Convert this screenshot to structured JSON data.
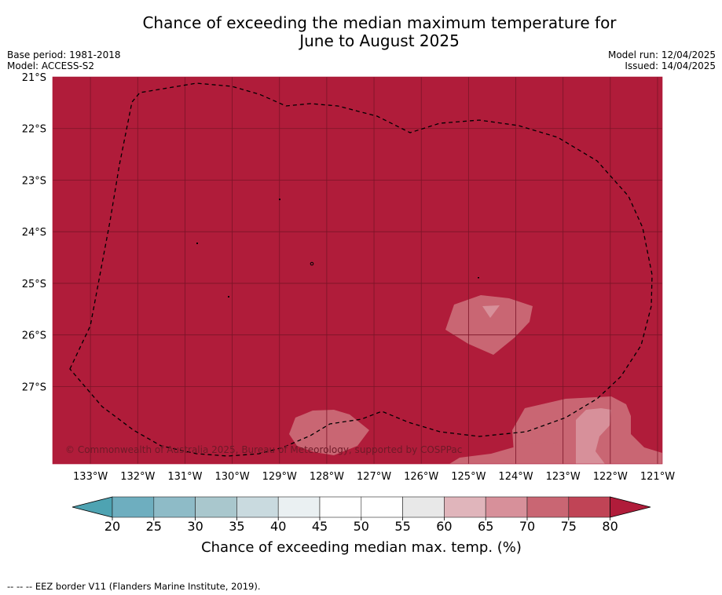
{
  "title_line1": "Chance of exceeding the median maximum temperature for",
  "title_line2": "June to August 2025",
  "meta_left": [
    "Base period: 1981-2018",
    "Model: ACCESS-S2"
  ],
  "meta_right": [
    "Model run: 12/04/2025",
    "Issued: 14/04/2025"
  ],
  "copyright": "© Commonwealth of Australia 2025, Bureau of Meteorology, supported by COSPPac",
  "footer": "--  --  -- EEZ border V11 (Flanders Marine Institute, 2019).",
  "map": {
    "lon_range": [
      -133.8,
      -120.9
    ],
    "lat_range": [
      -21.0,
      -28.5
    ],
    "dominant_category": "above 80%",
    "lon_ticks": [
      {
        "value": -133,
        "label": "133°W"
      },
      {
        "value": -132,
        "label": "132°W"
      },
      {
        "value": -131,
        "label": "131°W"
      },
      {
        "value": -130,
        "label": "130°W"
      },
      {
        "value": -129,
        "label": "129°W"
      },
      {
        "value": -128,
        "label": "128°W"
      },
      {
        "value": -127,
        "label": "127°W"
      },
      {
        "value": -126,
        "label": "126°W"
      },
      {
        "value": -125,
        "label": "125°W"
      },
      {
        "value": -124,
        "label": "124°W"
      },
      {
        "value": -123,
        "label": "123°W"
      },
      {
        "value": -122,
        "label": "122°W"
      },
      {
        "value": -121,
        "label": "121°W"
      }
    ],
    "lat_ticks": [
      {
        "value": -21,
        "label": "21°S"
      },
      {
        "value": -22,
        "label": "22°S"
      },
      {
        "value": -23,
        "label": "23°S"
      },
      {
        "value": -24,
        "label": "24°S"
      },
      {
        "value": -25,
        "label": "25°S"
      },
      {
        "value": -26,
        "label": "26°S"
      },
      {
        "value": -27,
        "label": "27°S"
      }
    ]
  },
  "colorbar": {
    "label": "Chance of exceeding median max. temp. (%)",
    "ticks": [
      "20",
      "25",
      "30",
      "35",
      "40",
      "45",
      "50",
      "55",
      "60",
      "65",
      "70",
      "75",
      "80"
    ],
    "colors": {
      "below_20": "#4ea3b2",
      "bins": [
        "#6eaebf",
        "#8ebbc7",
        "#a9c7cd",
        "#c9dadf",
        "#eaf0f2",
        "#ffffff",
        "#ffffff",
        "#e8e8e8",
        "#e0b5bb",
        "#d7909a",
        "#c96673",
        "#c04456"
      ],
      "above_80": "#b01c3a"
    }
  },
  "colors": {
    "ocean_high": "#b01c3a",
    "patch_70_75": "#c96673",
    "patch_65_70": "#d7909a",
    "grid": "#7a1427"
  }
}
